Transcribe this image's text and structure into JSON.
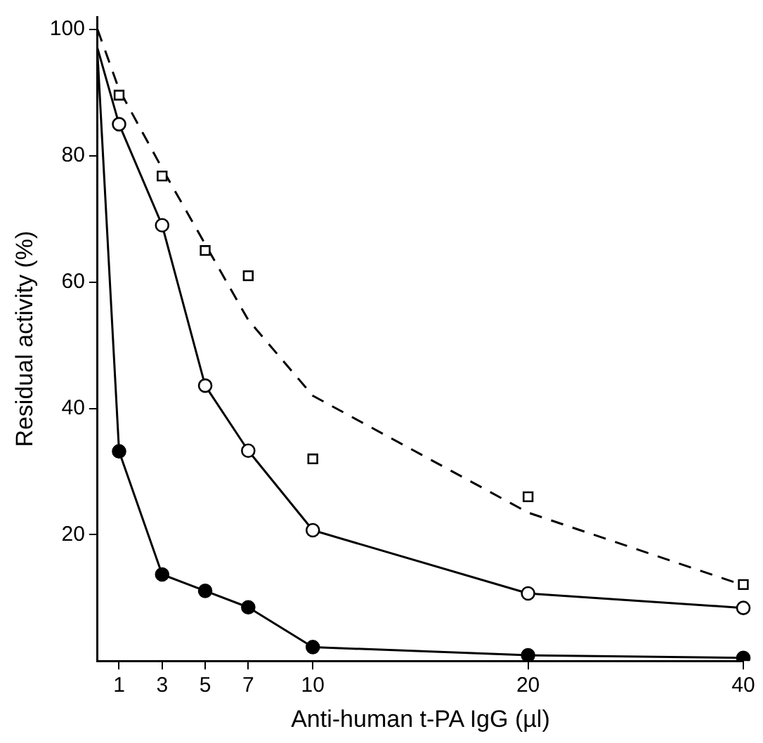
{
  "chart_data": {
    "type": "line",
    "xlabel": "Anti-human t-PA IgG (µl)",
    "ylabel": "Residual activity (%)",
    "categories": [
      null,
      "1",
      null,
      "3",
      null,
      "5",
      null,
      "7",
      null,
      null,
      "10",
      null,
      null,
      null,
      null,
      null,
      null,
      null,
      null,
      null,
      "20",
      null,
      null,
      null,
      null,
      null,
      null,
      null,
      null,
      null,
      "40"
    ],
    "ylim": [
      0,
      102
    ],
    "yticks": [
      20,
      40,
      60,
      80,
      100
    ],
    "grid": false,
    "legend": false,
    "series": [
      {
        "color": "#000000",
        "marker": "circle",
        "line_style": "solid",
        "values": [
          96,
          33.2,
          null,
          13.7,
          null,
          11.1,
          null,
          8.5,
          null,
          null,
          2.2,
          null,
          null,
          null,
          null,
          null,
          null,
          null,
          null,
          null,
          0.9,
          null,
          null,
          null,
          null,
          null,
          null,
          null,
          null,
          null,
          0.5
        ]
      },
      {
        "color": "#000000",
        "marker": "circle",
        "line_style": "solid",
        "values": [
          97,
          85,
          null,
          69,
          null,
          43.6,
          null,
          33.3,
          null,
          null,
          20.7,
          null,
          null,
          null,
          null,
          null,
          null,
          null,
          null,
          null,
          10.7,
          null,
          null,
          null,
          null,
          null,
          null,
          null,
          null,
          null,
          8.4
        ]
      },
      {
        "type": "scatter",
        "color": "#000000",
        "marker": "square",
        "values": [
          null,
          89.6,
          null,
          76.8,
          null,
          65,
          null,
          61,
          null,
          null,
          32,
          null,
          null,
          null,
          null,
          null,
          null,
          null,
          null,
          null,
          26,
          null,
          null,
          null,
          null,
          null,
          null,
          null,
          null,
          null,
          12.1
        ]
      },
      {
        "color": "#000000",
        "marker": "none",
        "line_style": "dashed",
        "values": [
          100,
          90.5,
          null,
          78,
          null,
          66,
          null,
          54,
          null,
          null,
          42,
          null,
          null,
          null,
          null,
          null,
          null,
          null,
          null,
          null,
          23.5,
          null,
          null,
          null,
          null,
          null,
          null,
          null,
          null,
          null,
          12
        ]
      }
    ]
  }
}
